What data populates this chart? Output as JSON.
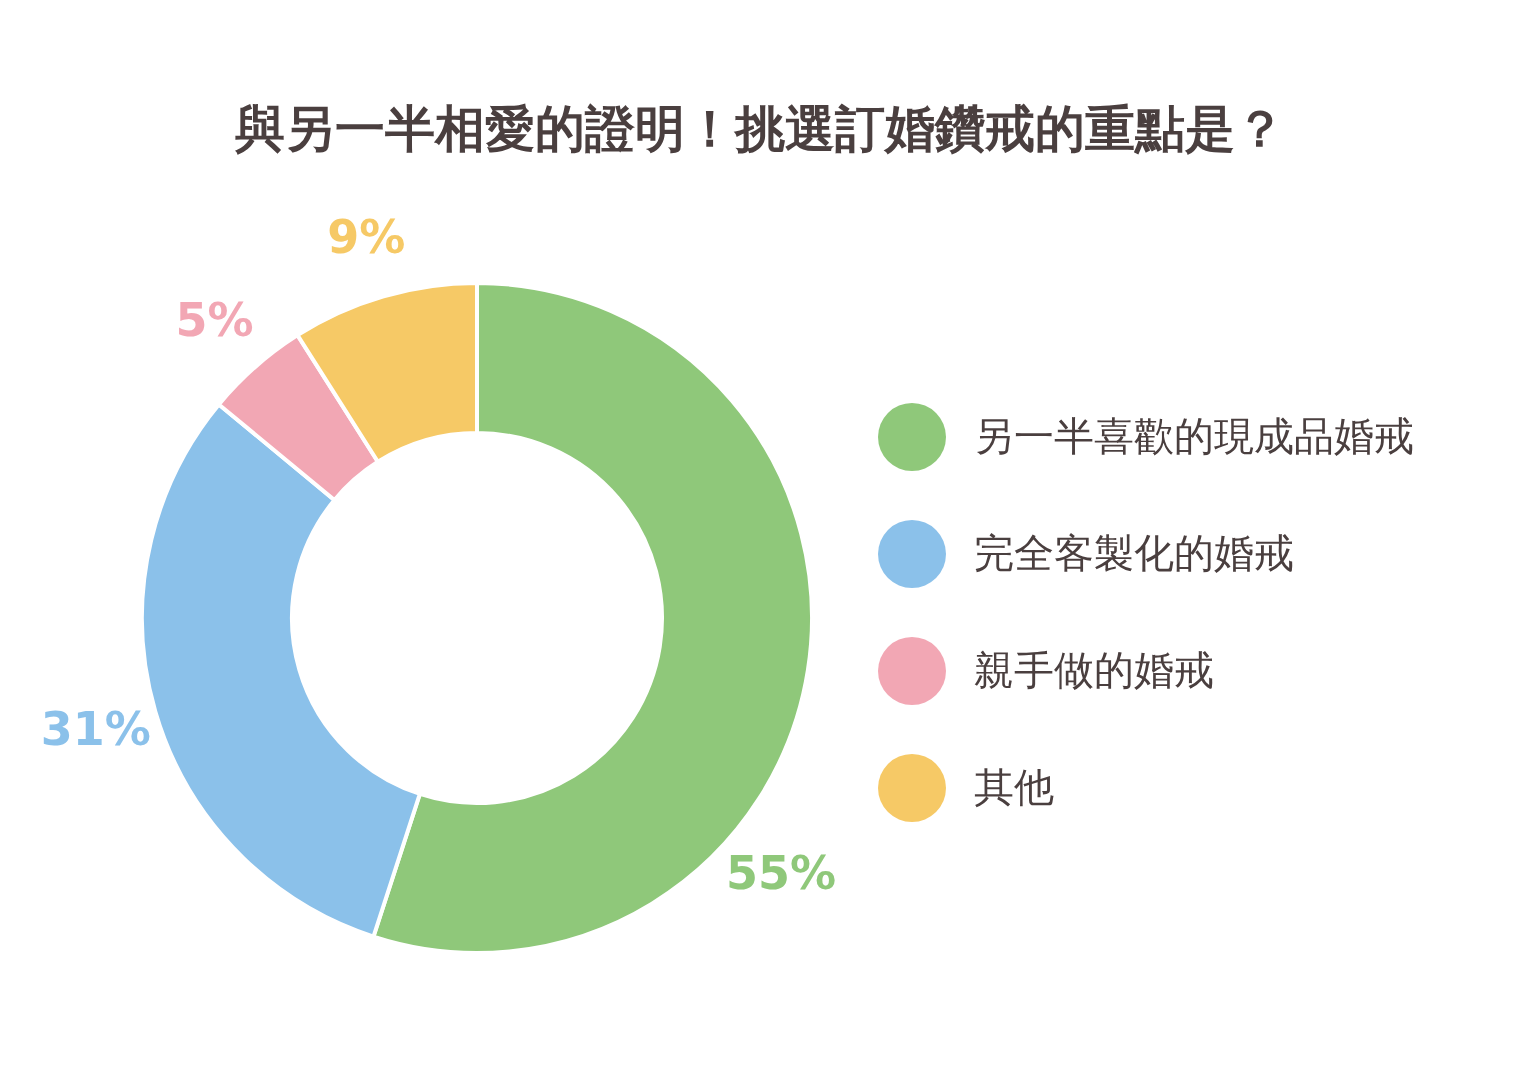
{
  "chart_data": {
    "type": "donut",
    "title": "與另一半相愛的證明！挑選訂婚鑽戒的重點是？",
    "categories": [
      "另一半喜歡的現成品婚戒",
      "完全客製化的婚戒",
      "親手做的婚戒",
      "其他"
    ],
    "values": [
      55,
      31,
      5,
      9
    ],
    "colors": [
      "#8fc87a",
      "#8bc1ea",
      "#f2a7b4",
      "#f6c966"
    ],
    "value_labels": [
      "55%",
      "31%",
      "5%",
      "9%"
    ],
    "legend": "right"
  }
}
